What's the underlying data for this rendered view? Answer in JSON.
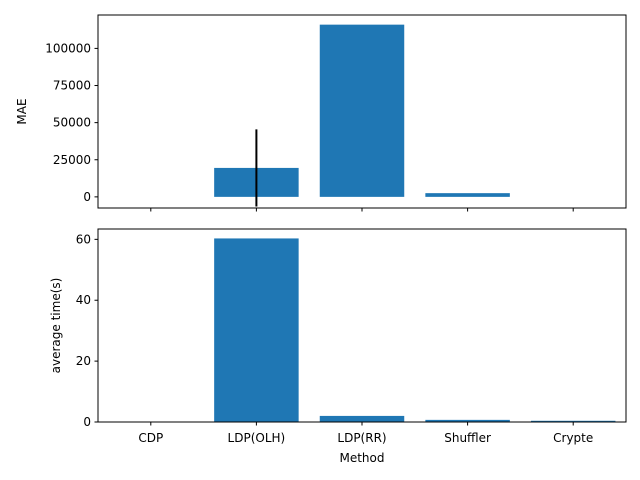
{
  "chart_data": [
    {
      "type": "bar",
      "categories": [
        "CDP",
        "LDP(OLH)",
        "LDP(RR)",
        "Shuffler",
        "Crypte"
      ],
      "values": [
        0,
        19500,
        116000,
        2500,
        0
      ],
      "error": [
        0,
        26000,
        0,
        0,
        0
      ],
      "color": "#1f77b4",
      "ylabel": "MAE",
      "xlabel": "",
      "ylim": [
        -7500,
        122500
      ],
      "yticks": [
        0,
        25000,
        50000,
        75000,
        100000
      ],
      "ytick_labels": [
        "0",
        "25000",
        "50000",
        "75000",
        "100000"
      ],
      "show_x_tick_labels": false,
      "grid": false
    },
    {
      "type": "bar",
      "categories": [
        "CDP",
        "LDP(OLH)",
        "LDP(RR)",
        "Shuffler",
        "Crypte"
      ],
      "values": [
        0,
        60.3,
        2.0,
        0.7,
        0.4
      ],
      "color": "#1f77b4",
      "ylabel": "average time(s)",
      "xlabel": "Method",
      "ylim": [
        0,
        63.4
      ],
      "yticks": [
        0,
        20,
        40,
        60
      ],
      "ytick_labels": [
        "0",
        "20",
        "40",
        "60"
      ],
      "show_x_tick_labels": true,
      "grid": false
    }
  ]
}
